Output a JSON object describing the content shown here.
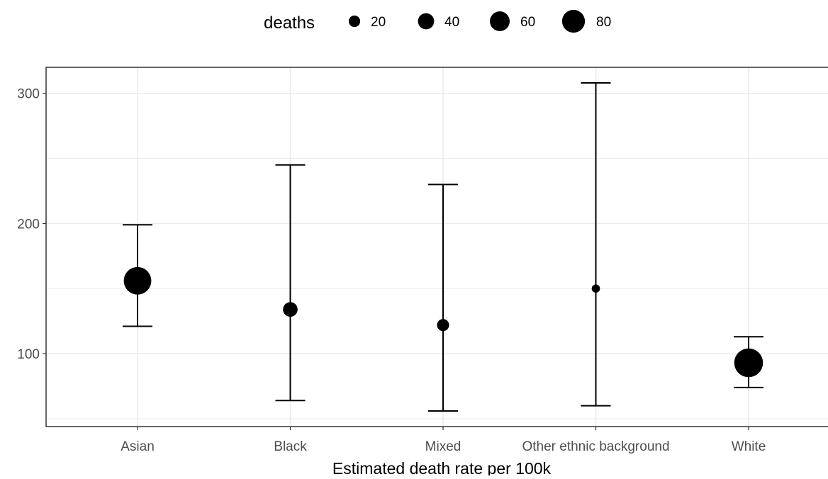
{
  "chart_data": {
    "type": "scatter",
    "subtype": "point-with-error-bars",
    "title": "",
    "xlabel": "Estimated death rate per 100k",
    "ylabel": "",
    "categories": [
      "Asian",
      "Black",
      "Mixed",
      "Other ethnic background",
      "White"
    ],
    "y_ticks": [
      100,
      200,
      300
    ],
    "ylim": [
      44,
      320
    ],
    "grid": true,
    "legend": {
      "title": "deaths",
      "position": "top",
      "entries": [
        {
          "label": "20",
          "value": 20
        },
        {
          "label": "40",
          "value": 40
        },
        {
          "label": "60",
          "value": 60
        },
        {
          "label": "80",
          "value": 80
        }
      ]
    },
    "points": [
      {
        "category": "Asian",
        "estimate": 156,
        "lower": 121,
        "upper": 199,
        "deaths": 78
      },
      {
        "category": "Black",
        "estimate": 134,
        "lower": 64,
        "upper": 245,
        "deaths": 22
      },
      {
        "category": "Mixed",
        "estimate": 122,
        "lower": 56,
        "upper": 230,
        "deaths": 15
      },
      {
        "category": "Other ethnic background",
        "estimate": 150,
        "lower": 60,
        "upper": 308,
        "deaths": 7
      },
      {
        "category": "White",
        "estimate": 93,
        "lower": 74,
        "upper": 113,
        "deaths": 85
      }
    ],
    "colors": {
      "points": "#000000",
      "errorbars": "#000000",
      "grid": "#ebebeb",
      "panel_border": "#333333",
      "tick_text": "#4d4d4d",
      "background": "#ffffff"
    }
  }
}
